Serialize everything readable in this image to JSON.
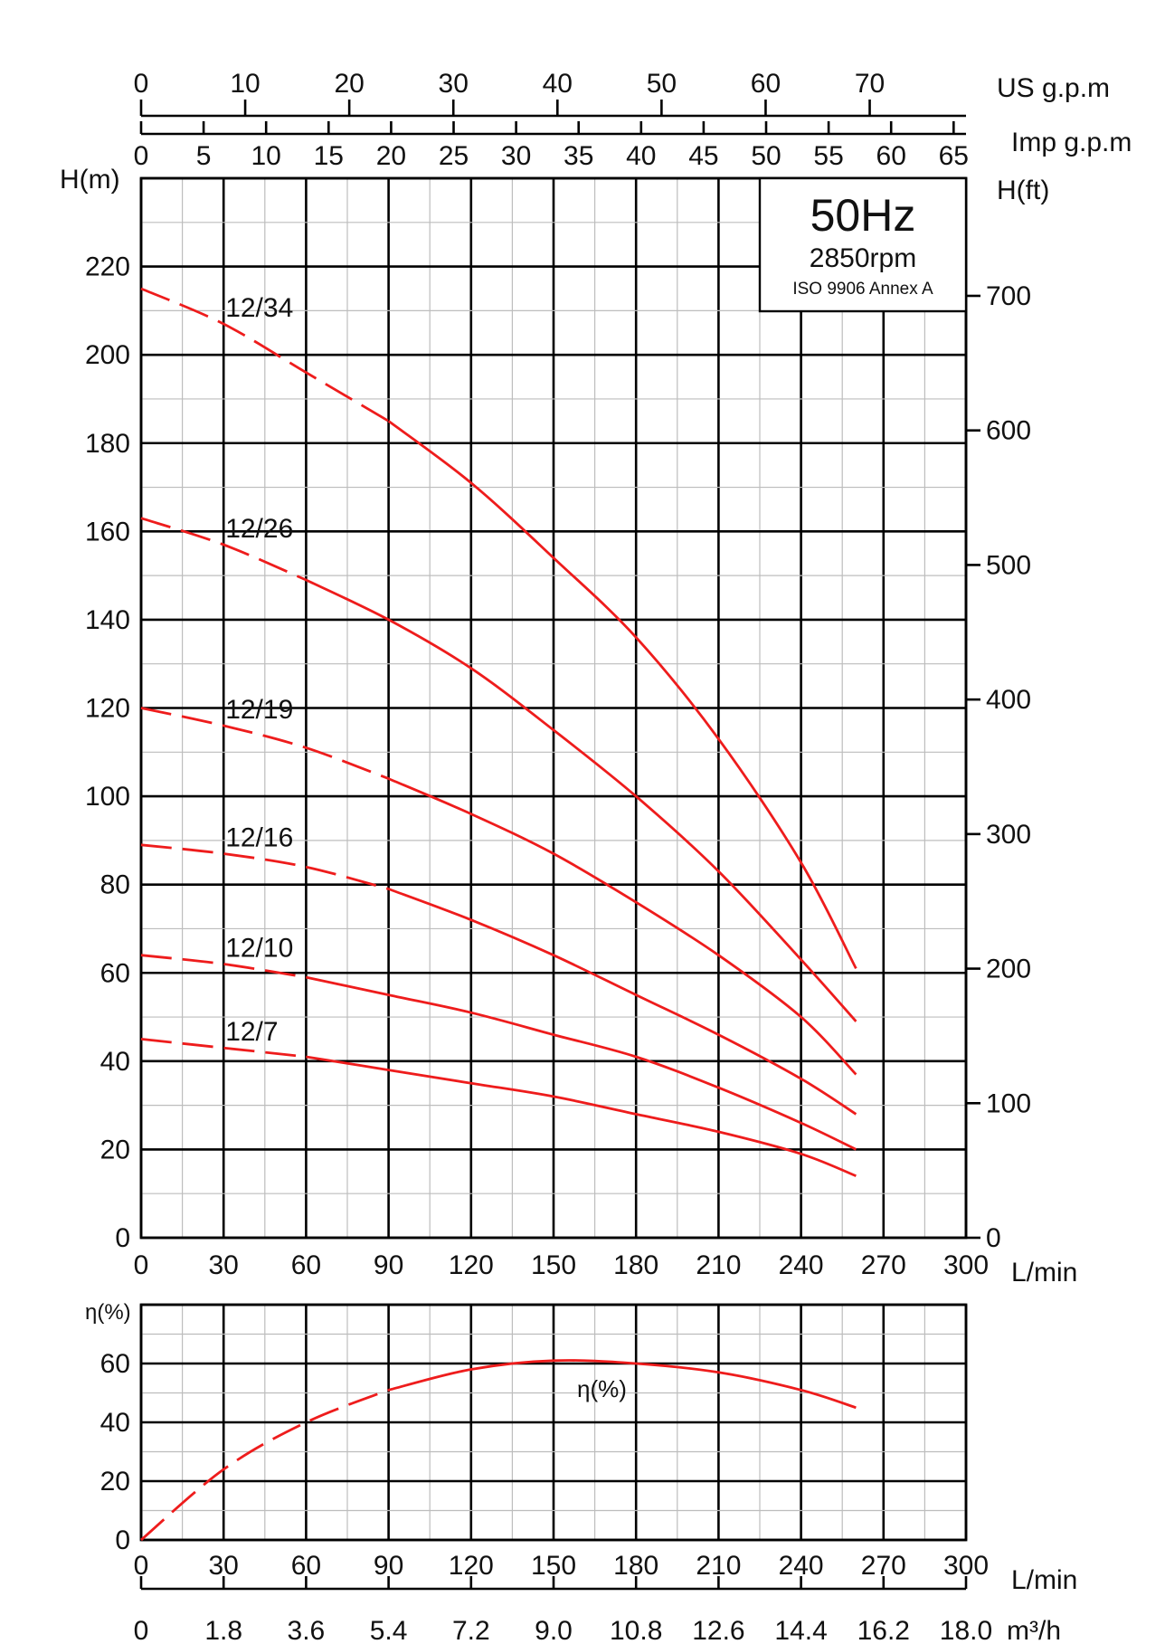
{
  "chart_data": [
    {
      "type": "line",
      "title": "",
      "info_box": {
        "frequency": "50Hz",
        "speed": "2850rpm",
        "standard": "ISO 9906 Annex A",
        "frequency_color": "#1565c8"
      },
      "xlabel": "L/min",
      "ylabel": "H(m)",
      "ylabel_right": "H(ft)",
      "x_ticks": [
        "0",
        "30",
        "60",
        "90",
        "120",
        "150",
        "180",
        "210",
        "240",
        "270",
        "300"
      ],
      "y_ticks": [
        "0",
        "20",
        "40",
        "60",
        "80",
        "100",
        "120",
        "140",
        "160",
        "180",
        "200",
        "220"
      ],
      "y_right_ticks": [
        "0",
        "100",
        "200",
        "300",
        "400",
        "500",
        "600",
        "700"
      ],
      "top_axis_us": {
        "label": "US g.p.m",
        "ticks": [
          "0",
          "10",
          "20",
          "30",
          "40",
          "50",
          "60",
          "70"
        ]
      },
      "top_axis_imp": {
        "label": "Imp g.p.m",
        "ticks": [
          "0",
          "5",
          "10",
          "15",
          "20",
          "25",
          "30",
          "35",
          "40",
          "45",
          "50",
          "55",
          "60",
          "65"
        ]
      },
      "xlim": [
        0,
        300
      ],
      "ylim": [
        0,
        240
      ],
      "grid": true,
      "curve_color": "#ee1c1c",
      "series": [
        {
          "name": "12/34",
          "x": [
            0,
            30,
            60,
            90,
            120,
            150,
            180,
            210,
            240,
            260
          ],
          "y": [
            215,
            207,
            196,
            185,
            171,
            154,
            136,
            113,
            85,
            61
          ],
          "dashed_until": 90
        },
        {
          "name": "12/26",
          "x": [
            0,
            30,
            60,
            90,
            120,
            150,
            180,
            210,
            240,
            260
          ],
          "y": [
            163,
            157,
            149,
            140,
            129,
            115,
            100,
            83,
            63,
            49
          ],
          "dashed_until": 60
        },
        {
          "name": "12/19",
          "x": [
            0,
            30,
            60,
            90,
            120,
            150,
            180,
            210,
            240,
            260
          ],
          "y": [
            120,
            116,
            111,
            104,
            96,
            87,
            76,
            64,
            50,
            37
          ],
          "dashed_until": 90
        },
        {
          "name": "12/16",
          "x": [
            0,
            30,
            60,
            90,
            120,
            150,
            180,
            210,
            240,
            260
          ],
          "y": [
            89,
            87,
            84,
            79,
            72,
            64,
            55,
            46,
            36,
            28
          ],
          "dashed_until": 90
        },
        {
          "name": "12/10",
          "x": [
            0,
            30,
            60,
            90,
            120,
            150,
            180,
            210,
            240,
            260
          ],
          "y": [
            64,
            62,
            59,
            55,
            51,
            46,
            41,
            34,
            26,
            20
          ],
          "dashed_until": 60
        },
        {
          "name": "12/7",
          "x": [
            0,
            30,
            60,
            90,
            120,
            150,
            180,
            210,
            240,
            260
          ],
          "y": [
            45,
            43,
            41,
            38,
            35,
            32,
            28,
            24,
            19,
            14
          ],
          "dashed_until": 60
        }
      ]
    },
    {
      "type": "line",
      "title": "",
      "xlabel": "L/min",
      "ylabel": "η(%)",
      "x_ticks": [
        "0",
        "30",
        "60",
        "90",
        "120",
        "150",
        "180",
        "210",
        "240",
        "270",
        "300"
      ],
      "y_ticks": [
        "0",
        "20",
        "40",
        "60"
      ],
      "bottom_axis": {
        "label": "m³/h",
        "ticks": [
          "0",
          "1.8",
          "3.6",
          "5.4",
          "7.2",
          "9.0",
          "10.8",
          "12.6",
          "14.4",
          "16.2",
          "18.0"
        ]
      },
      "xlim": [
        0,
        300
      ],
      "ylim": [
        0,
        80
      ],
      "grid": true,
      "series": [
        {
          "name": "η(%)",
          "x": [
            0,
            30,
            60,
            90,
            120,
            150,
            180,
            210,
            240,
            260
          ],
          "y": [
            0,
            24,
            40,
            51,
            58,
            61,
            60,
            57,
            51,
            45
          ],
          "dashed_until": 90
        }
      ]
    }
  ]
}
